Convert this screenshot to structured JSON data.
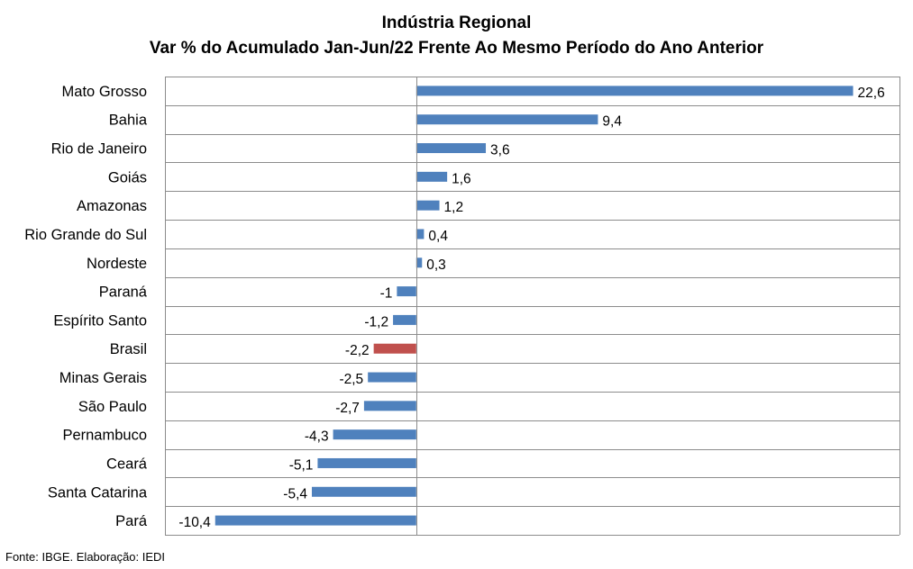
{
  "chart_data": {
    "type": "bar",
    "orientation": "horizontal",
    "title": "Indústria Regional",
    "subtitle": "Var % do Acumulado Jan-Jun/22 Frente Ao Mesmo Período do Ano Anterior",
    "categories": [
      "Mato Grosso",
      "Bahia",
      "Rio de Janeiro",
      "Goiás",
      "Amazonas",
      "Rio Grande do Sul",
      "Nordeste",
      "Paraná",
      "Espírito Santo",
      "Brasil",
      "Minas Gerais",
      "São Paulo",
      "Pernambuco",
      "Ceará",
      "Santa Catarina",
      "Pará"
    ],
    "values": [
      22.6,
      9.4,
      3.6,
      1.6,
      1.2,
      0.4,
      0.3,
      -1,
      -1.2,
      -2.2,
      -2.5,
      -2.7,
      -4.3,
      -5.1,
      -5.4,
      -10.4
    ],
    "value_labels": [
      "22,6",
      "9,4",
      "3,6",
      "1,6",
      "1,2",
      "0,4",
      "0,3",
      "-1",
      "-1,2",
      "-2,2",
      "-2,5",
      "-2,7",
      "-4,3",
      "-5,1",
      "-5,4",
      "-10,4"
    ],
    "colors": {
      "default": "#4F81BD",
      "highlight": "#C0504D"
    },
    "highlight_category": "Brasil",
    "xlim": [
      -13,
      25
    ],
    "grid": true,
    "legend": "none"
  },
  "footer": {
    "source": "Fonte: IBGE. Elaboração: IEDI"
  }
}
